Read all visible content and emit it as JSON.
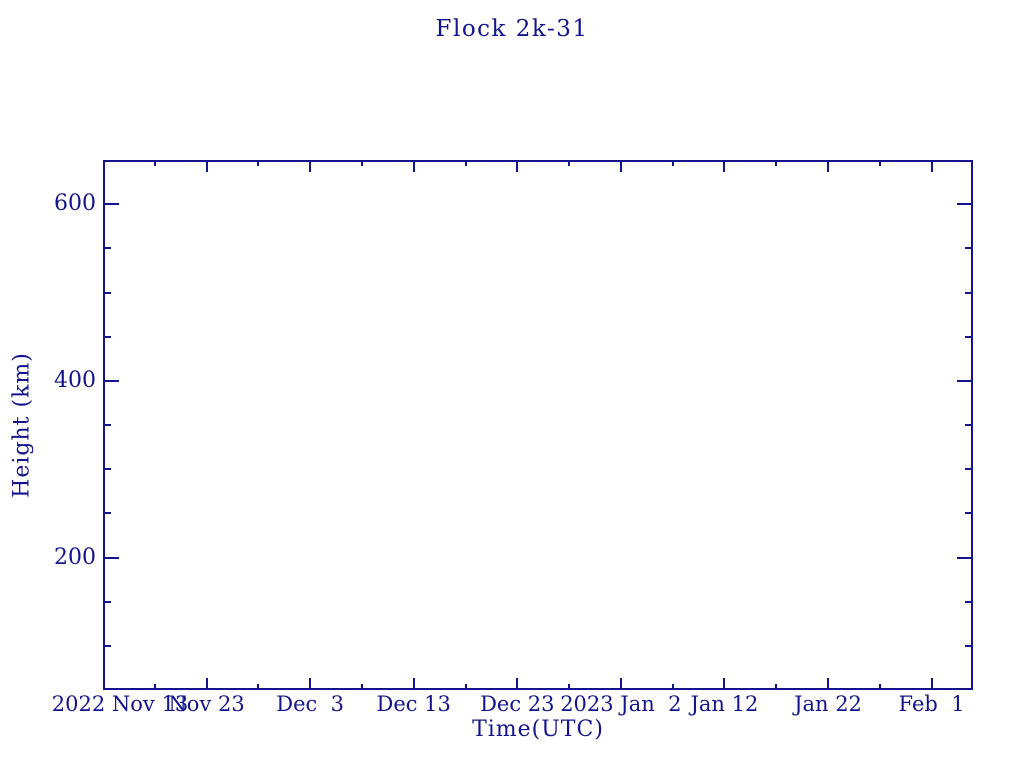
{
  "page": {
    "background_color": "#FFFFFF",
    "accent_color": "#14148C"
  },
  "chart_data": {
    "type": "line",
    "title": "Flock 2k-31",
    "xlabel": "Time(UTC)",
    "ylabel": "Height (km)",
    "grid": false,
    "legend": null,
    "series": [],
    "x_axis": {
      "unit": "days since 2022 Nov 13",
      "range": [
        0,
        84
      ],
      "major_ticks": [
        {
          "day": 0,
          "label": "2022 Nov 13"
        },
        {
          "day": 10,
          "label": "Nov 23"
        },
        {
          "day": 20,
          "label": "Dec  3"
        },
        {
          "day": 30,
          "label": "Dec 13"
        },
        {
          "day": 40,
          "label": "Dec 23"
        },
        {
          "day": 50,
          "label": "2023 Jan  2"
        },
        {
          "day": 60,
          "label": "Jan 12"
        },
        {
          "day": 70,
          "label": "Jan 22"
        },
        {
          "day": 80,
          "label": "Feb  1"
        }
      ],
      "minor_tick_days": [
        5,
        15,
        25,
        35,
        45,
        55,
        65,
        75
      ]
    },
    "y_axis": {
      "unit": "km",
      "range": [
        50,
        650
      ],
      "major_ticks": [
        {
          "value": 200,
          "label": "200"
        },
        {
          "value": 400,
          "label": "400"
        },
        {
          "value": 600,
          "label": "600"
        }
      ],
      "minor_tick_values": [
        100,
        150,
        250,
        300,
        350,
        450,
        500,
        550
      ]
    }
  }
}
